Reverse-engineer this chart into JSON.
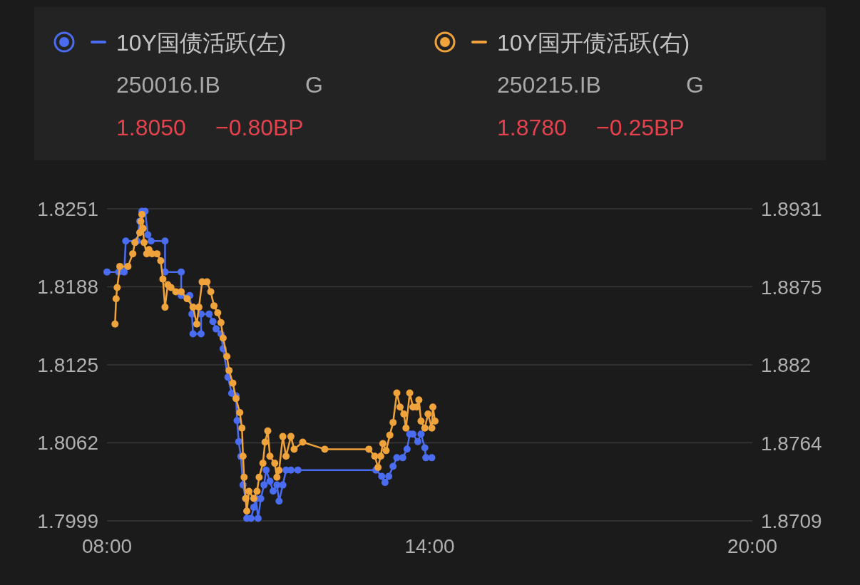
{
  "chart_data": {
    "type": "line",
    "legend": "top",
    "grid": "y",
    "marker": "circle",
    "line_style": "solid",
    "xlim": [
      8,
      20
    ],
    "xticks": [
      {
        "value": 8,
        "label": "08:00"
      },
      {
        "value": 14,
        "label": "14:00"
      },
      {
        "value": 20,
        "label": "20:00"
      }
    ],
    "ylim": [
      1.7999,
      1.8251
    ],
    "yticks": [
      1.7999,
      1.8062,
      1.8125,
      1.8188,
      1.8251
    ],
    "y2lim": [
      1.8709,
      1.8931
    ],
    "y2ticks": [
      1.8709,
      1.8764,
      1.882,
      1.8875,
      1.8931
    ],
    "annotations": [
      "250016.IB",
      "G",
      "1.8050",
      "−0.80BP",
      "250215.IB",
      "G",
      "1.8780",
      "−0.25BP"
    ],
    "series": [
      {
        "name": "10Y国债活跃(左)",
        "color": "#4a6cf0",
        "x": [
          8.0,
          8.22,
          8.32,
          8.35,
          8.56,
          8.61,
          8.65,
          8.71,
          8.76,
          8.82,
          9.08,
          9.08,
          9.38,
          9.38,
          9.54,
          9.58,
          9.6,
          9.75,
          9.75,
          9.9,
          9.97,
          10.03,
          10.12,
          10.16,
          10.25,
          10.32,
          10.4,
          10.42,
          10.45,
          10.49,
          10.53,
          10.58,
          10.6,
          10.68,
          10.73,
          10.77,
          10.81,
          10.86,
          10.92,
          10.96,
          11.03,
          11.09,
          11.16,
          11.2,
          11.27,
          11.33,
          11.42,
          11.55,
          13.0,
          13.11,
          13.17,
          13.24,
          13.32,
          13.39,
          13.5,
          13.58,
          13.63,
          13.69,
          13.78,
          13.84,
          13.91,
          13.93,
          14.04
        ],
        "values": [
          1.82,
          1.82,
          1.82,
          1.8225,
          1.8225,
          1.8241,
          1.8249,
          1.8249,
          1.823,
          1.8225,
          1.8225,
          1.82,
          1.82,
          1.8181,
          1.8181,
          1.8166,
          1.815,
          1.815,
          1.8166,
          1.8166,
          1.816,
          1.8154,
          1.815,
          1.8138,
          1.8115,
          1.8102,
          1.81,
          1.808,
          1.8063,
          1.8051,
          1.8028,
          1.8017,
          1.8001,
          1.8001,
          1.801,
          1.8017,
          1.8001,
          1.8017,
          1.8028,
          1.804,
          1.8031,
          1.8023,
          1.8028,
          1.8015,
          1.8028,
          1.804,
          1.804,
          1.804,
          1.804,
          1.8035,
          1.803,
          1.8035,
          1.8043,
          1.805,
          1.805,
          1.8057,
          1.8069,
          1.8069,
          1.8063,
          1.8069,
          1.8058,
          1.805,
          1.805
        ]
      },
      {
        "name": "10Y国开债活跃(右)",
        "color": "#f0a33a",
        "axis": "y2",
        "x": [
          8.15,
          8.17,
          8.19,
          8.24,
          8.39,
          8.48,
          8.52,
          8.61,
          8.63,
          8.65,
          8.67,
          8.69,
          8.74,
          8.78,
          8.84,
          8.93,
          9.0,
          9.04,
          9.08,
          9.13,
          9.19,
          9.28,
          9.38,
          9.49,
          9.6,
          9.67,
          9.71,
          9.77,
          9.86,
          9.93,
          9.99,
          10.06,
          10.12,
          10.16,
          10.23,
          10.27,
          10.34,
          10.4,
          10.47,
          10.51,
          10.53,
          10.55,
          10.58,
          10.6,
          10.64,
          10.73,
          10.79,
          10.83,
          10.9,
          10.94,
          10.99,
          11.03,
          11.12,
          11.16,
          11.2,
          11.27,
          11.33,
          11.42,
          11.48,
          11.64,
          12.05,
          12.87,
          12.98,
          13.04,
          13.09,
          13.13,
          13.19,
          13.26,
          13.32,
          13.39,
          13.45,
          13.52,
          13.56,
          13.63,
          13.69,
          13.76,
          13.8,
          13.84,
          13.91,
          13.97,
          14.04,
          14.06,
          14.1
        ],
        "values": [
          1.8849,
          1.8867,
          1.8875,
          1.889,
          1.889,
          1.8899,
          1.8907,
          1.8914,
          1.8922,
          1.8927,
          1.8917,
          1.8907,
          1.8899,
          1.8902,
          1.8899,
          1.8899,
          1.8894,
          1.8881,
          1.8861,
          1.8877,
          1.8875,
          1.8872,
          1.8872,
          1.8867,
          1.8861,
          1.8849,
          1.8861,
          1.8879,
          1.8879,
          1.8872,
          1.8862,
          1.8857,
          1.885,
          1.8839,
          1.8826,
          1.8816,
          1.8807,
          1.8796,
          1.8786,
          1.8775,
          1.8755,
          1.874,
          1.8725,
          1.8716,
          1.873,
          1.8725,
          1.873,
          1.874,
          1.875,
          1.8765,
          1.8773,
          1.8755,
          1.875,
          1.874,
          1.8745,
          1.8769,
          1.8755,
          1.8769,
          1.876,
          1.8765,
          1.876,
          1.876,
          1.8755,
          1.8747,
          1.8755,
          1.8764,
          1.8759,
          1.877,
          1.8779,
          1.88,
          1.879,
          1.8785,
          1.8775,
          1.88,
          1.879,
          1.879,
          1.8795,
          1.878,
          1.8775,
          1.8785,
          1.8775,
          1.879,
          1.878
        ]
      }
    ]
  }
}
